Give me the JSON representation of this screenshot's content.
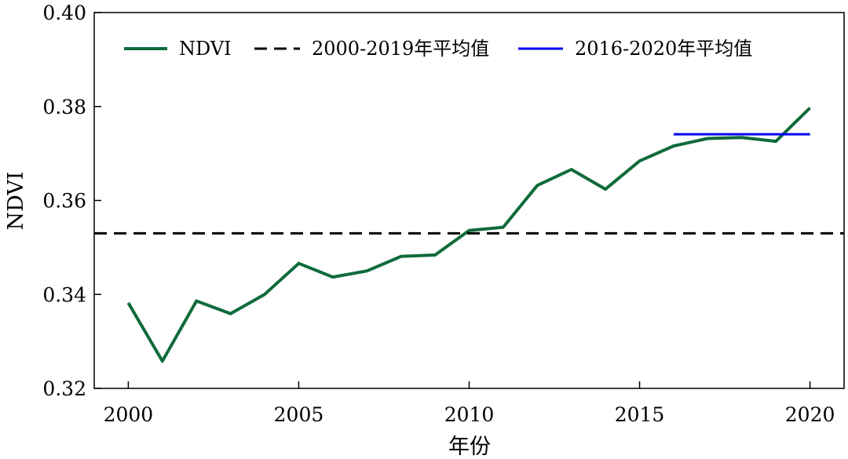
{
  "chart_data": {
    "type": "line",
    "title": "",
    "xlabel": "年份",
    "ylabel": "NDVI",
    "xlim": [
      1999,
      2021
    ],
    "ylim": [
      0.32,
      0.4
    ],
    "xticks": [
      2000,
      2005,
      2010,
      2015,
      2020
    ],
    "xtick_labels": [
      "2000",
      "2005",
      "2010",
      "2015",
      "2020"
    ],
    "yticks": [
      0.32,
      0.34,
      0.36,
      0.38,
      0.4
    ],
    "ytick_labels": [
      "0.32",
      "0.34",
      "0.36",
      "0.38",
      "0.40"
    ],
    "grid": false,
    "legend_position": "top",
    "series": [
      {
        "name": "NDVI",
        "style": "solid",
        "color": "#0f6b3a",
        "x": [
          2000,
          2001,
          2002,
          2003,
          2004,
          2005,
          2006,
          2007,
          2008,
          2009,
          2010,
          2011,
          2012,
          2013,
          2014,
          2015,
          2016,
          2017,
          2018,
          2019,
          2020
        ],
        "values": [
          0.3382,
          0.3258,
          0.3386,
          0.3359,
          0.34,
          0.3466,
          0.3437,
          0.345,
          0.3481,
          0.3484,
          0.3536,
          0.3543,
          0.3632,
          0.3666,
          0.3624,
          0.3684,
          0.3716,
          0.3732,
          0.3734,
          0.3726,
          0.3797
        ]
      },
      {
        "name": "2000-2019年平均值",
        "style": "dashed",
        "color": "#000000",
        "x": [
          1999,
          2021
        ],
        "values": [
          0.353,
          0.353
        ]
      },
      {
        "name": "2016-2020年平均值",
        "style": "solid",
        "color": "#0000ee",
        "x": [
          2016,
          2020
        ],
        "values": [
          0.3741,
          0.3741
        ]
      }
    ]
  }
}
